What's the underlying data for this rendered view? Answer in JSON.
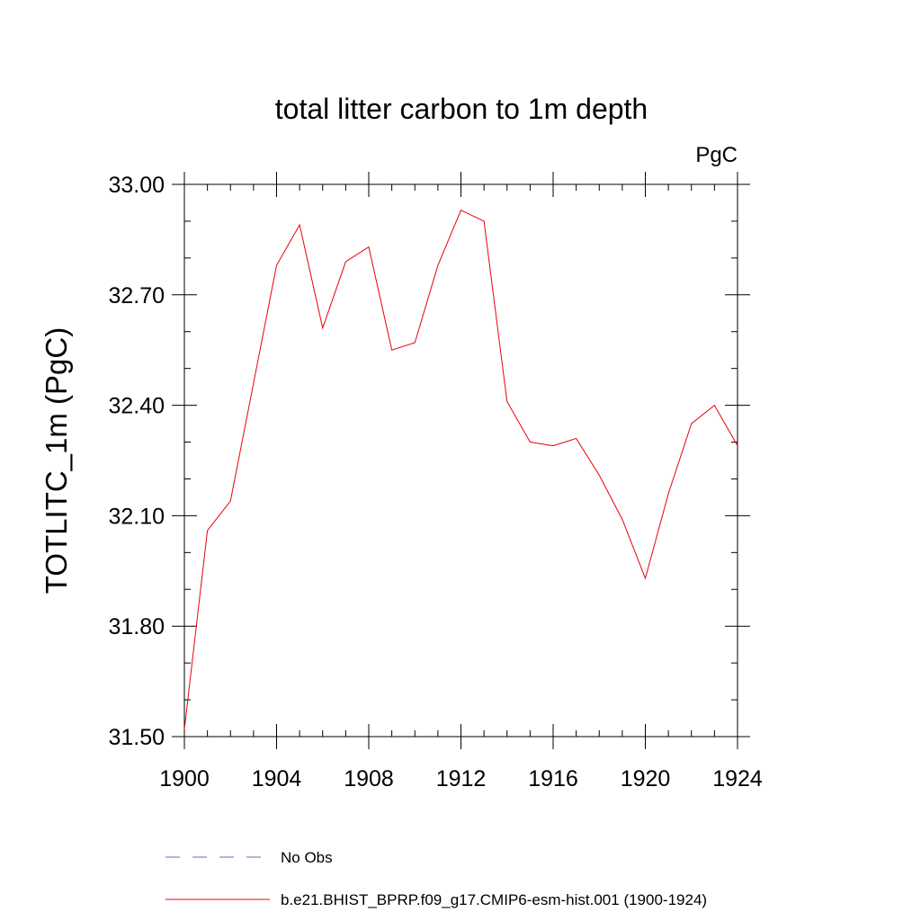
{
  "chart_data": {
    "type": "line",
    "title": "total litter carbon to 1m depth",
    "units_label": "PgC",
    "xlabel": "",
    "ylabel": "TOTLITC_1m  (PgC)",
    "xlim": [
      1900,
      1924
    ],
    "ylim": [
      31.5,
      33.0
    ],
    "x_ticks": [
      "1900",
      "1904",
      "1908",
      "1912",
      "1916",
      "1920",
      "1924"
    ],
    "y_ticks": [
      "31.50",
      "31.80",
      "32.10",
      "32.40",
      "32.70",
      "33.00"
    ],
    "x": [
      1900,
      1901,
      1902,
      1903,
      1904,
      1905,
      1906,
      1907,
      1908,
      1909,
      1910,
      1911,
      1912,
      1913,
      1914,
      1915,
      1916,
      1917,
      1918,
      1919,
      1920,
      1921,
      1922,
      1923,
      1924
    ],
    "series": [
      {
        "name": "b.e21.BHIST_BPRP.f09_g17.CMIP6-esm-hist.001 (1900-1924)",
        "color": "#e8000b",
        "values": [
          31.52,
          32.06,
          32.14,
          32.46,
          32.78,
          32.89,
          32.61,
          32.79,
          32.83,
          32.55,
          32.57,
          32.78,
          32.93,
          32.9,
          32.41,
          32.3,
          32.29,
          32.31,
          32.21,
          32.09,
          31.93,
          32.16,
          32.35,
          32.4,
          32.29
        ]
      }
    ],
    "legend": [
      {
        "label": "No Obs",
        "style": "dashed",
        "color": "#6a6ab8"
      },
      {
        "label": "b.e21.BHIST_BPRP.f09_g17.CMIP6-esm-hist.001 (1900-1924)",
        "style": "solid",
        "color": "#e8000b"
      }
    ],
    "grid": false,
    "legend_position": "bottom"
  }
}
